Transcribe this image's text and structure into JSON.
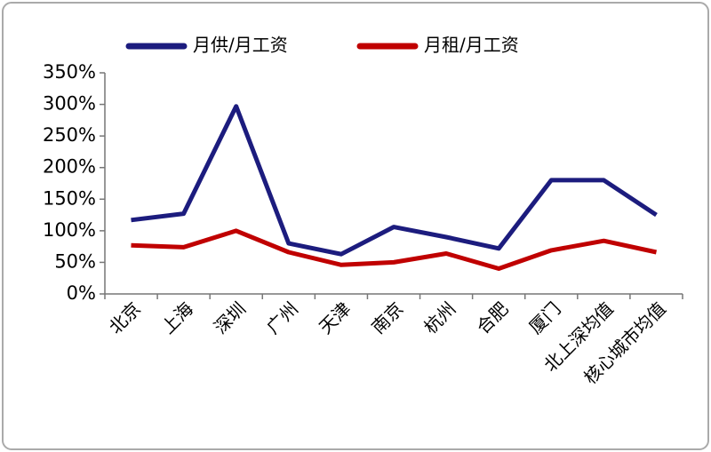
{
  "chart_data": {
    "type": "line",
    "categories": [
      "北京",
      "上海",
      "深圳",
      "广州",
      "天津",
      "南京",
      "杭州",
      "合肥",
      "厦门",
      "北上深均值",
      "核心城市均值"
    ],
    "series": [
      {
        "name": "月供/月工资",
        "color": "#1c1c7e",
        "values": [
          117,
          127,
          297,
          80,
          63,
          106,
          90,
          72,
          180,
          180,
          125
        ]
      },
      {
        "name": "月租/月工资",
        "color": "#c00000",
        "values": [
          77,
          74,
          100,
          66,
          46,
          50,
          64,
          40,
          69,
          84,
          66
        ]
      }
    ],
    "ylim": [
      0,
      350
    ],
    "yticks": [
      {
        "value": 0,
        "label": "0%"
      },
      {
        "value": 50,
        "label": "50%"
      },
      {
        "value": 100,
        "label": "100%"
      },
      {
        "value": 150,
        "label": "150%"
      },
      {
        "value": 200,
        "label": "200%"
      },
      {
        "value": 250,
        "label": "250%"
      },
      {
        "value": 300,
        "label": "300%"
      },
      {
        "value": 350,
        "label": "350%"
      }
    ],
    "grid": false,
    "legend": "top"
  }
}
